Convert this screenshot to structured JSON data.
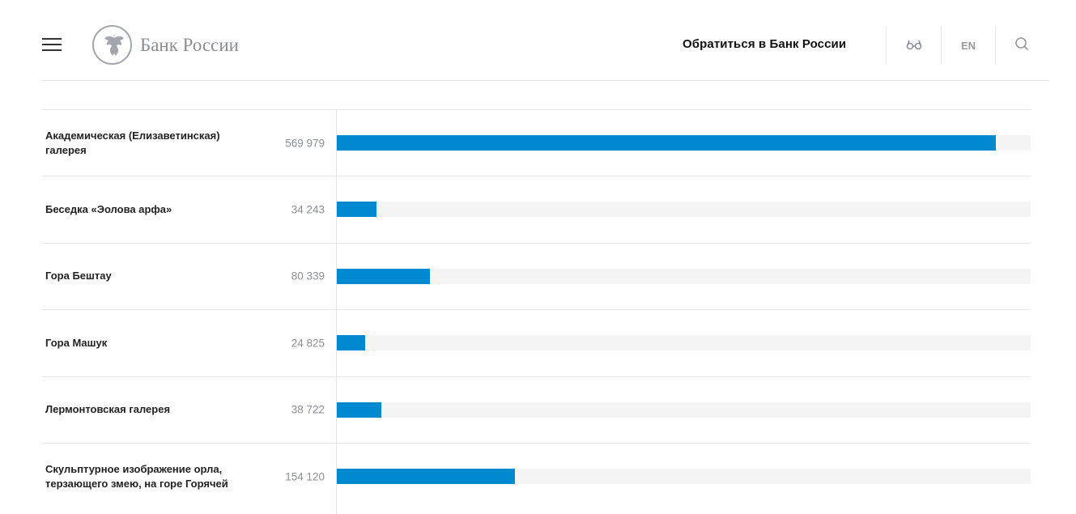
{
  "header": {
    "logo_text": "Банк России",
    "appeal": "Обратиться в Банк России",
    "lang": "EN"
  },
  "colors": {
    "bar": "#0089cf",
    "track": "#f4f4f4"
  },
  "chart_data": {
    "type": "bar",
    "orientation": "horizontal",
    "xlim": [
      0,
      600000
    ],
    "categories": [
      "Академическая (Елизаветинская) галерея",
      "Беседка «Эолова арфа»",
      "Гора Бештау",
      "Гора Машук",
      "Лермонтовская галерея",
      "Скульптурное изображение орла, терзающего змею, на горе Горячей"
    ],
    "values": [
      569979,
      34243,
      80339,
      24825,
      38722,
      154120
    ],
    "value_labels": [
      "569 979",
      "34 243",
      "80 339",
      "24 825",
      "38 722",
      "154 120"
    ]
  }
}
